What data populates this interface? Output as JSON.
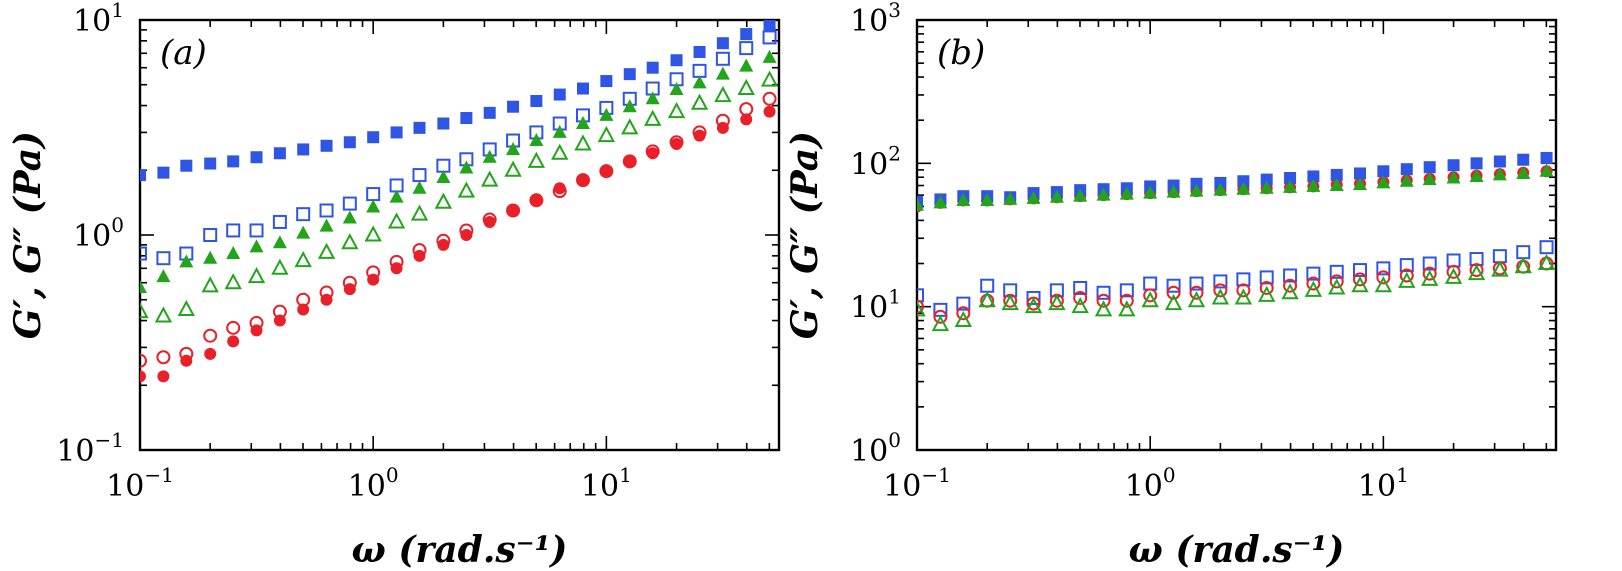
{
  "chart_data": [
    {
      "type": "scatter",
      "panel_label": "(a)",
      "xlabel": "ω (rad.s⁻¹)",
      "ylabel": "G′, G″ (Pa)",
      "x_scale": "log",
      "y_scale": "log",
      "xlim": [
        0.1,
        55
      ],
      "ylim": [
        0.1,
        10
      ],
      "x_tick_labels": [
        {
          "value": 0.1,
          "base": "10",
          "exp": "−1"
        },
        {
          "value": 1,
          "base": "10",
          "exp": "0"
        },
        {
          "value": 10,
          "base": "10",
          "exp": "1"
        }
      ],
      "y_tick_labels": [
        {
          "value": 0.1,
          "base": "10",
          "exp": "−1"
        },
        {
          "value": 1,
          "base": "10",
          "exp": "0"
        },
        {
          "value": 10,
          "base": "10",
          "exp": "1"
        }
      ],
      "legend": "none",
      "grid": false,
      "x": [
        0.1,
        0.126,
        0.158,
        0.2,
        0.251,
        0.316,
        0.398,
        0.501,
        0.631,
        0.794,
        1.0,
        1.26,
        1.58,
        2.0,
        2.51,
        3.16,
        3.98,
        5.01,
        6.31,
        7.94,
        10.0,
        12.6,
        15.8,
        20.0,
        25.1,
        31.6,
        39.8,
        50.1
      ],
      "series": [
        {
          "marker": "square",
          "filled": true,
          "color": "#2f55e4",
          "values": [
            1.9,
            1.95,
            2.1,
            2.15,
            2.2,
            2.3,
            2.4,
            2.5,
            2.6,
            2.7,
            2.85,
            3.0,
            3.15,
            3.3,
            3.5,
            3.7,
            3.95,
            4.2,
            4.5,
            4.8,
            5.2,
            5.6,
            6.0,
            6.5,
            7.1,
            7.8,
            8.6,
            9.4
          ]
        },
        {
          "marker": "square",
          "filled": false,
          "color": "#2f55e4",
          "values": [
            0.82,
            0.78,
            0.82,
            1.0,
            1.05,
            1.05,
            1.15,
            1.25,
            1.3,
            1.4,
            1.55,
            1.7,
            1.9,
            2.1,
            2.25,
            2.5,
            2.75,
            3.0,
            3.3,
            3.6,
            3.9,
            4.3,
            4.8,
            5.3,
            5.8,
            6.6,
            7.4,
            8.3
          ]
        },
        {
          "marker": "triangle",
          "filled": true,
          "color": "#22a51a",
          "values": [
            0.57,
            0.64,
            0.75,
            0.78,
            0.82,
            0.88,
            0.92,
            1.02,
            1.1,
            1.2,
            1.35,
            1.5,
            1.65,
            1.85,
            2.05,
            2.3,
            2.5,
            2.75,
            3.0,
            3.3,
            3.6,
            3.95,
            4.3,
            4.75,
            5.1,
            5.6,
            6.1,
            6.7
          ]
        },
        {
          "marker": "triangle",
          "filled": false,
          "color": "#22a51a",
          "values": [
            0.44,
            0.42,
            0.45,
            0.58,
            0.6,
            0.64,
            0.7,
            0.76,
            0.83,
            0.92,
            1.0,
            1.15,
            1.25,
            1.42,
            1.6,
            1.8,
            2.0,
            2.2,
            2.4,
            2.65,
            2.9,
            3.15,
            3.45,
            3.75,
            4.1,
            4.45,
            4.8,
            5.25
          ]
        },
        {
          "marker": "circle",
          "filled": true,
          "color": "#e8202a",
          "values": [
            0.22,
            0.22,
            0.26,
            0.28,
            0.32,
            0.36,
            0.4,
            0.45,
            0.5,
            0.56,
            0.62,
            0.7,
            0.8,
            0.9,
            1.0,
            1.15,
            1.3,
            1.45,
            1.65,
            1.8,
            2.0,
            2.2,
            2.4,
            2.65,
            2.9,
            3.15,
            3.45,
            3.75
          ]
        },
        {
          "marker": "circle",
          "filled": false,
          "color": "#e8202a",
          "values": [
            0.26,
            0.27,
            0.28,
            0.34,
            0.37,
            0.39,
            0.44,
            0.5,
            0.54,
            0.6,
            0.67,
            0.75,
            0.85,
            0.94,
            1.05,
            1.18,
            1.3,
            1.45,
            1.6,
            1.8,
            1.98,
            2.2,
            2.45,
            2.7,
            3.0,
            3.4,
            3.85,
            4.3
          ]
        }
      ]
    },
    {
      "type": "scatter",
      "panel_label": "(b)",
      "xlabel": "ω (rad.s⁻¹)",
      "ylabel": "G′, G″ (Pa)",
      "x_scale": "log",
      "y_scale": "log",
      "xlim": [
        0.1,
        55
      ],
      "ylim": [
        1,
        1000
      ],
      "x_tick_labels": [
        {
          "value": 0.1,
          "base": "10",
          "exp": "−1"
        },
        {
          "value": 1,
          "base": "10",
          "exp": "0"
        },
        {
          "value": 10,
          "base": "10",
          "exp": "1"
        }
      ],
      "y_tick_labels": [
        {
          "value": 1,
          "base": "10",
          "exp": "0"
        },
        {
          "value": 10,
          "base": "10",
          "exp": "1"
        },
        {
          "value": 100,
          "base": "10",
          "exp": "2"
        },
        {
          "value": 1000,
          "base": "10",
          "exp": "3"
        }
      ],
      "legend": "none",
      "grid": false,
      "x": [
        0.1,
        0.126,
        0.158,
        0.2,
        0.251,
        0.316,
        0.398,
        0.501,
        0.631,
        0.794,
        1.0,
        1.26,
        1.58,
        2.0,
        2.51,
        3.16,
        3.98,
        5.01,
        6.31,
        7.94,
        10.0,
        12.6,
        15.8,
        20.0,
        25.1,
        31.6,
        39.8,
        50.1
      ],
      "series": [
        {
          "marker": "circle",
          "filled": true,
          "color": "#e8202a",
          "values": [
            50,
            53,
            55,
            55,
            56,
            57,
            58,
            59,
            60,
            61,
            62,
            63,
            64,
            65,
            66,
            67,
            68,
            69,
            71,
            72,
            74,
            76,
            78,
            80,
            82,
            84,
            86,
            88
          ]
        },
        {
          "marker": "square",
          "filled": true,
          "color": "#2f55e4",
          "values": [
            54,
            56,
            59,
            59,
            58,
            62,
            63,
            65,
            66,
            67,
            69,
            70,
            72,
            73,
            75,
            77,
            79,
            81,
            83,
            85,
            88,
            91,
            94,
            97,
            100,
            103,
            106,
            109
          ]
        },
        {
          "marker": "triangle",
          "filled": true,
          "color": "#22a51a",
          "values": [
            51,
            53,
            55,
            55,
            56,
            57,
            58,
            59,
            60,
            61,
            62,
            63,
            64,
            65,
            66,
            67,
            68,
            69,
            70,
            71,
            73,
            75,
            77,
            79,
            81,
            83,
            85,
            88
          ]
        },
        {
          "marker": "square",
          "filled": false,
          "color": "#2f55e4",
          "values": [
            12,
            9.5,
            10.5,
            14,
            13,
            11.5,
            13,
            13.5,
            12.5,
            13,
            14.5,
            14,
            14.5,
            15,
            15.5,
            16,
            16.5,
            17,
            17.5,
            18,
            18.5,
            19.5,
            20,
            21,
            21.5,
            22.5,
            24,
            26
          ]
        },
        {
          "marker": "circle",
          "filled": false,
          "color": "#e8202a",
          "values": [
            10,
            8.5,
            9,
            11,
            11,
            10.5,
            11,
            11.5,
            11,
            11,
            12,
            12.5,
            12.5,
            13,
            13,
            13.5,
            14,
            14.5,
            15,
            15.5,
            16,
            16.5,
            17,
            17.5,
            18,
            18.5,
            19,
            20
          ]
        },
        {
          "marker": "triangle",
          "filled": false,
          "color": "#22a51a",
          "values": [
            9.5,
            7.5,
            8,
            11,
            10.5,
            10,
            10.5,
            10,
            9.5,
            9.5,
            11,
            10.5,
            11,
            11.5,
            11.5,
            12,
            12.5,
            13,
            13.5,
            14,
            14,
            15,
            15.5,
            16,
            17,
            18,
            19,
            20
          ]
        }
      ]
    }
  ]
}
